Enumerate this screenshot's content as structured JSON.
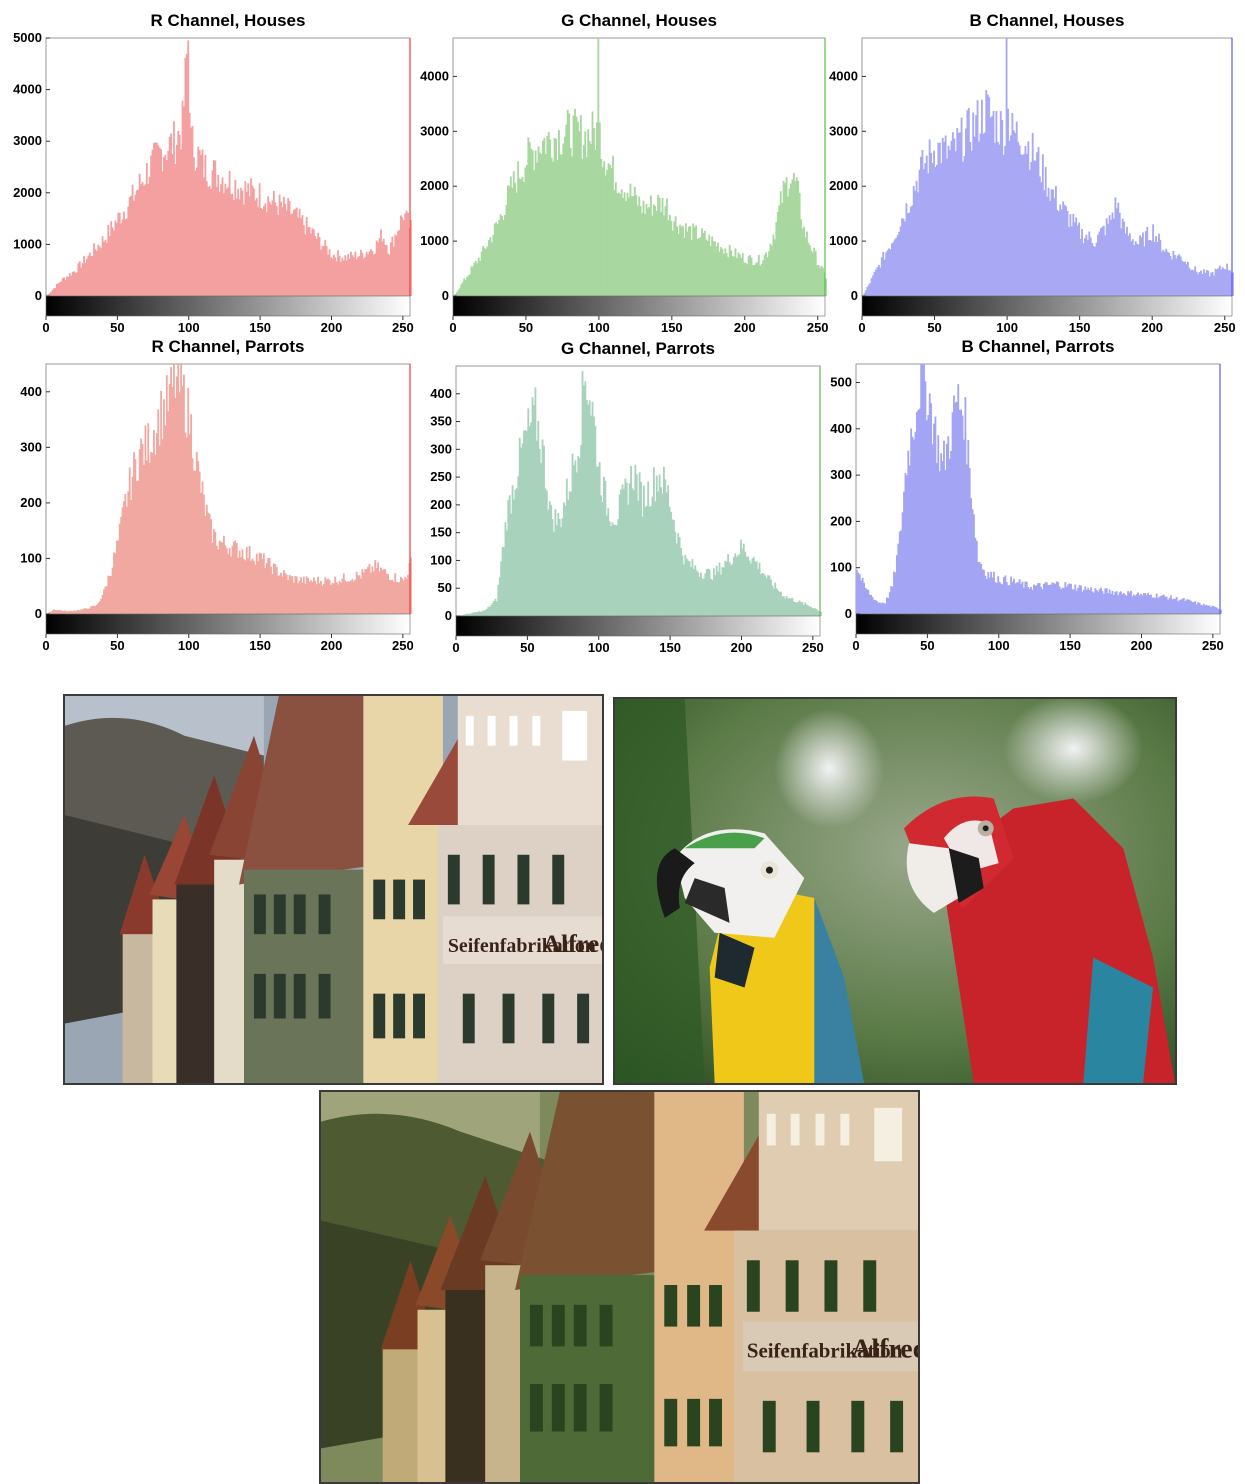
{
  "colors": {
    "r": "#f4a0a0",
    "g": "#a8d7a0",
    "b": "#a8a8f4",
    "r_parrots": "#f0a8a0",
    "g_parrots": "#a8d2bc",
    "b_parrots": "#a4a4f4",
    "r_edge": "#f03a3a",
    "g_edge": "#5aba4a",
    "b_edge": "#5a5aec"
  },
  "chart_data": [
    {
      "type": "bar",
      "title": "R Channel, Houses",
      "color_key": "r",
      "xlim": [
        0,
        255
      ],
      "ylim": [
        0,
        5000
      ],
      "xticks": [
        0,
        50,
        100,
        150,
        200,
        250
      ],
      "yticks": [
        0,
        1000,
        2000,
        3000,
        4000,
        5000
      ],
      "profile": [
        [
          0,
          0
        ],
        [
          10,
          300
        ],
        [
          20,
          500
        ],
        [
          30,
          800
        ],
        [
          40,
          1100
        ],
        [
          50,
          1500
        ],
        [
          60,
          1900
        ],
        [
          70,
          2400
        ],
        [
          80,
          2800
        ],
        [
          90,
          3000
        ],
        [
          95,
          3300
        ],
        [
          99,
          5000
        ],
        [
          101,
          3000
        ],
        [
          110,
          2500
        ],
        [
          120,
          2350
        ],
        [
          130,
          2200
        ],
        [
          140,
          2050
        ],
        [
          150,
          1950
        ],
        [
          160,
          1800
        ],
        [
          170,
          1650
        ],
        [
          180,
          1400
        ],
        [
          190,
          1100
        ],
        [
          200,
          800
        ],
        [
          210,
          750
        ],
        [
          220,
          800
        ],
        [
          230,
          950
        ],
        [
          235,
          1200
        ],
        [
          240,
          900
        ],
        [
          250,
          1600
        ],
        [
          255,
          1300
        ]
      ]
    },
    {
      "type": "bar",
      "title": "G Channel, Houses",
      "color_key": "g",
      "xlim": [
        0,
        255
      ],
      "ylim": [
        0,
        4700
      ],
      "xticks": [
        0,
        50,
        100,
        150,
        200,
        250
      ],
      "yticks": [
        0,
        1000,
        2000,
        3000,
        4000
      ],
      "profile": [
        [
          0,
          0
        ],
        [
          10,
          400
        ],
        [
          20,
          800
        ],
        [
          30,
          1300
        ],
        [
          40,
          2000
        ],
        [
          50,
          2500
        ],
        [
          60,
          2800
        ],
        [
          70,
          2900
        ],
        [
          80,
          3000
        ],
        [
          90,
          2900
        ],
        [
          98,
          3000
        ],
        [
          99,
          4700
        ],
        [
          101,
          2700
        ],
        [
          110,
          2200
        ],
        [
          120,
          1900
        ],
        [
          130,
          1600
        ],
        [
          140,
          1700
        ],
        [
          146,
          1650
        ],
        [
          150,
          1400
        ],
        [
          160,
          1200
        ],
        [
          170,
          1100
        ],
        [
          180,
          950
        ],
        [
          190,
          800
        ],
        [
          200,
          680
        ],
        [
          210,
          650
        ],
        [
          215,
          800
        ],
        [
          220,
          1200
        ],
        [
          225,
          1800
        ],
        [
          230,
          2200
        ],
        [
          235,
          2000
        ],
        [
          240,
          1200
        ],
        [
          250,
          600
        ],
        [
          255,
          350
        ]
      ]
    },
    {
      "type": "bar",
      "title": "B Channel, Houses",
      "color_key": "b",
      "xlim": [
        0,
        255
      ],
      "ylim": [
        0,
        4700
      ],
      "xticks": [
        0,
        50,
        100,
        150,
        200,
        250
      ],
      "yticks": [
        0,
        1000,
        2000,
        3000,
        4000
      ],
      "profile": [
        [
          0,
          0
        ],
        [
          10,
          500
        ],
        [
          20,
          1000
        ],
        [
          30,
          1600
        ],
        [
          40,
          2300
        ],
        [
          50,
          2700
        ],
        [
          60,
          2600
        ],
        [
          70,
          2900
        ],
        [
          80,
          3200
        ],
        [
          85,
          3400
        ],
        [
          90,
          3200
        ],
        [
          98,
          3000
        ],
        [
          99,
          4700
        ],
        [
          101,
          3000
        ],
        [
          110,
          2900
        ],
        [
          120,
          2500
        ],
        [
          130,
          1900
        ],
        [
          140,
          1500
        ],
        [
          150,
          1150
        ],
        [
          160,
          1000
        ],
        [
          170,
          1350
        ],
        [
          175,
          1700
        ],
        [
          180,
          1200
        ],
        [
          190,
          950
        ],
        [
          200,
          1200
        ],
        [
          205,
          950
        ],
        [
          210,
          800
        ],
        [
          220,
          700
        ],
        [
          230,
          450
        ],
        [
          240,
          400
        ],
        [
          250,
          550
        ],
        [
          255,
          450
        ]
      ]
    },
    {
      "type": "bar",
      "title": "R Channel, Parrots",
      "color_key": "r_parrots",
      "xlim": [
        0,
        255
      ],
      "ylim": [
        0,
        450
      ],
      "xticks": [
        0,
        50,
        100,
        150,
        200,
        250
      ],
      "yticks": [
        0,
        100,
        200,
        300,
        400
      ],
      "profile": [
        [
          0,
          0
        ],
        [
          5,
          8
        ],
        [
          15,
          5
        ],
        [
          25,
          8
        ],
        [
          35,
          15
        ],
        [
          40,
          40
        ],
        [
          45,
          80
        ],
        [
          50,
          130
        ],
        [
          55,
          200
        ],
        [
          60,
          250
        ],
        [
          65,
          290
        ],
        [
          70,
          300
        ],
        [
          75,
          330
        ],
        [
          80,
          360
        ],
        [
          85,
          380
        ],
        [
          90,
          420
        ],
        [
          95,
          400
        ],
        [
          100,
          350
        ],
        [
          105,
          270
        ],
        [
          110,
          200
        ],
        [
          115,
          150
        ],
        [
          120,
          130
        ],
        [
          130,
          120
        ],
        [
          140,
          110
        ],
        [
          150,
          100
        ],
        [
          160,
          80
        ],
        [
          170,
          65
        ],
        [
          180,
          60
        ],
        [
          190,
          60
        ],
        [
          200,
          60
        ],
        [
          210,
          65
        ],
        [
          220,
          70
        ],
        [
          230,
          85
        ],
        [
          240,
          70
        ],
        [
          250,
          60
        ],
        [
          255,
          90
        ]
      ]
    },
    {
      "type": "bar",
      "title": "G Channel, Parrots",
      "color_key": "g_parrots",
      "xlim": [
        0,
        255
      ],
      "ylim": [
        0,
        450
      ],
      "xticks": [
        0,
        50,
        100,
        150,
        200,
        250
      ],
      "yticks": [
        0,
        50,
        100,
        150,
        200,
        250,
        300,
        350,
        400
      ],
      "profile": [
        [
          0,
          0
        ],
        [
          10,
          5
        ],
        [
          20,
          10
        ],
        [
          28,
          30
        ],
        [
          35,
          180
        ],
        [
          42,
          260
        ],
        [
          48,
          320
        ],
        [
          55,
          360
        ],
        [
          60,
          300
        ],
        [
          66,
          180
        ],
        [
          72,
          170
        ],
        [
          80,
          250
        ],
        [
          86,
          330
        ],
        [
          90,
          440
        ],
        [
          95,
          370
        ],
        [
          100,
          260
        ],
        [
          106,
          190
        ],
        [
          112,
          180
        ],
        [
          118,
          220
        ],
        [
          124,
          260
        ],
        [
          130,
          210
        ],
        [
          136,
          230
        ],
        [
          142,
          255
        ],
        [
          148,
          220
        ],
        [
          154,
          150
        ],
        [
          160,
          100
        ],
        [
          170,
          80
        ],
        [
          180,
          75
        ],
        [
          190,
          100
        ],
        [
          200,
          125
        ],
        [
          210,
          95
        ],
        [
          220,
          60
        ],
        [
          230,
          35
        ],
        [
          240,
          25
        ],
        [
          250,
          15
        ],
        [
          255,
          8
        ]
      ]
    },
    {
      "type": "bar",
      "title": "B Channel, Parrots",
      "color_key": "b_parrots",
      "xlim": [
        0,
        255
      ],
      "ylim": [
        0,
        540
      ],
      "xticks": [
        0,
        50,
        100,
        150,
        200,
        250
      ],
      "yticks": [
        0,
        100,
        200,
        300,
        400,
        500
      ],
      "profile": [
        [
          0,
          100
        ],
        [
          5,
          60
        ],
        [
          10,
          40
        ],
        [
          15,
          25
        ],
        [
          20,
          25
        ],
        [
          25,
          60
        ],
        [
          30,
          160
        ],
        [
          35,
          330
        ],
        [
          40,
          420
        ],
        [
          45,
          520
        ],
        [
          50,
          480
        ],
        [
          55,
          390
        ],
        [
          60,
          320
        ],
        [
          65,
          380
        ],
        [
          70,
          460
        ],
        [
          75,
          440
        ],
        [
          80,
          280
        ],
        [
          85,
          120
        ],
        [
          90,
          90
        ],
        [
          100,
          75
        ],
        [
          110,
          70
        ],
        [
          120,
          60
        ],
        [
          130,
          60
        ],
        [
          140,
          65
        ],
        [
          150,
          60
        ],
        [
          160,
          55
        ],
        [
          170,
          50
        ],
        [
          180,
          48
        ],
        [
          190,
          45
        ],
        [
          200,
          42
        ],
        [
          210,
          40
        ],
        [
          220,
          35
        ],
        [
          230,
          30
        ],
        [
          240,
          22
        ],
        [
          250,
          15
        ],
        [
          255,
          10
        ]
      ]
    }
  ],
  "photos": [
    {
      "name": "houses-photo",
      "sign_left": "Seifenfabrikation",
      "sign_right": "Alfred"
    },
    {
      "name": "parrots-photo"
    },
    {
      "name": "houses-processed-photo",
      "sign_left": "Seifenfabrikation",
      "sign_right": "Alfred"
    }
  ]
}
